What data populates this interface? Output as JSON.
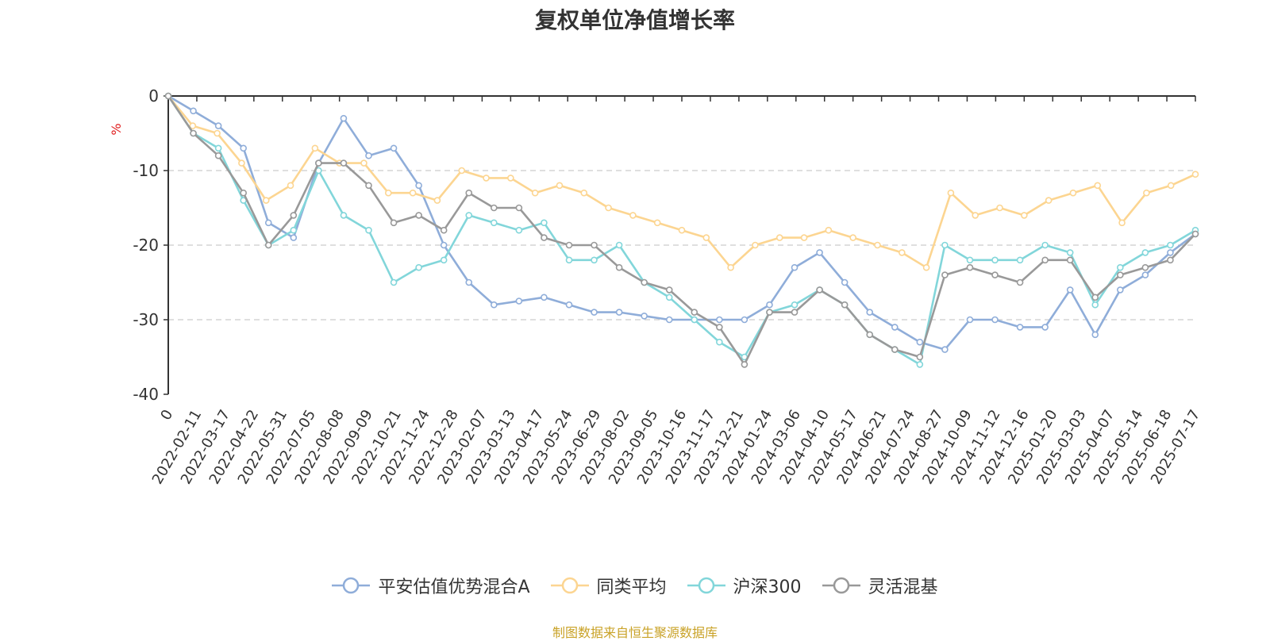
{
  "chart_data": {
    "type": "line",
    "title": "复权单位净值增长率",
    "ylabel": "%",
    "ylim": [
      -40,
      0
    ],
    "yticks": [
      0,
      -10,
      -20,
      -30,
      -40
    ],
    "grid": true,
    "legend_position": "bottom",
    "x_tick_labels": [
      "0",
      "2022-02-11",
      "2022-03-17",
      "2022-04-22",
      "2022-05-31",
      "2022-07-05",
      "2022-08-08",
      "2022-09-09",
      "2022-10-21",
      "2022-11-24",
      "2022-12-28",
      "2023-02-07",
      "2023-03-13",
      "2023-04-17",
      "2023-05-24",
      "2023-06-29",
      "2023-08-02",
      "2023-09-05",
      "2023-10-16",
      "2023-11-17",
      "2023-12-21",
      "2024-01-24",
      "2024-03-06",
      "2024-04-10",
      "2024-05-17",
      "2024-06-21",
      "2024-07-24",
      "2024-08-27",
      "2024-10-09",
      "2024-11-12",
      "2024-12-16",
      "2025-01-20",
      "2025-03-03",
      "2025-04-07",
      "2025-05-14",
      "2025-06-18",
      "2025-07-17"
    ],
    "series": [
      {
        "name": "平安估值优势混合A",
        "color": "#8fadd9",
        "values": [
          0,
          -2,
          -4,
          -7,
          -17,
          -19,
          -9,
          -3,
          -8,
          -7,
          -12,
          -20,
          -25,
          -28,
          -27.5,
          -27,
          -28,
          -29,
          -29,
          -29.5,
          -30,
          -30,
          -30,
          -30,
          -28,
          -23,
          -21,
          -25,
          -29,
          -31,
          -33,
          -34,
          -30,
          -30,
          -31,
          -31,
          -26,
          -32,
          -26,
          -24,
          -21,
          -18.5
        ]
      },
      {
        "name": "同类平均",
        "color": "#fcd591",
        "values": [
          0,
          -4,
          -5,
          -9,
          -14,
          -12,
          -7,
          -9,
          -9,
          -13,
          -13,
          -14,
          -10,
          -11,
          -11,
          -13,
          -12,
          -13,
          -15,
          -16,
          -17,
          -18,
          -19,
          -23,
          -20,
          -19,
          -19,
          -18,
          -19,
          -20,
          -21,
          -23,
          -13,
          -16,
          -15,
          -16,
          -14,
          -13,
          -12,
          -17,
          -13,
          -12,
          -10.5
        ]
      },
      {
        "name": "沪深300",
        "color": "#82d6da",
        "values": [
          0,
          -5,
          -7,
          -14,
          -20,
          -18,
          -10,
          -16,
          -18,
          -25,
          -23,
          -22,
          -16,
          -17,
          -18,
          -17,
          -22,
          -22,
          -20,
          -25,
          -27,
          -30,
          -33,
          -35,
          -29,
          -28,
          -26,
          -28,
          -32,
          -34,
          -36,
          -20,
          -22,
          -22,
          -22,
          -20,
          -21,
          -28,
          -23,
          -21,
          -20,
          -18
        ]
      },
      {
        "name": "灵活混基",
        "color": "#999999",
        "values": [
          0,
          -5,
          -8,
          -13,
          -20,
          -16,
          -9,
          -9,
          -12,
          -17,
          -16,
          -18,
          -13,
          -15,
          -15,
          -19,
          -20,
          -20,
          -23,
          -25,
          -26,
          -29,
          -31,
          -36,
          -29,
          -29,
          -26,
          -28,
          -32,
          -34,
          -35,
          -24,
          -23,
          -24,
          -25,
          -22,
          -22,
          -27,
          -24,
          -23,
          -22,
          -18.5
        ]
      }
    ]
  },
  "source_note": "制图数据来自恒生聚源数据库",
  "source_note_color": "#c9a227",
  "axis_unit_color": "#e02020"
}
